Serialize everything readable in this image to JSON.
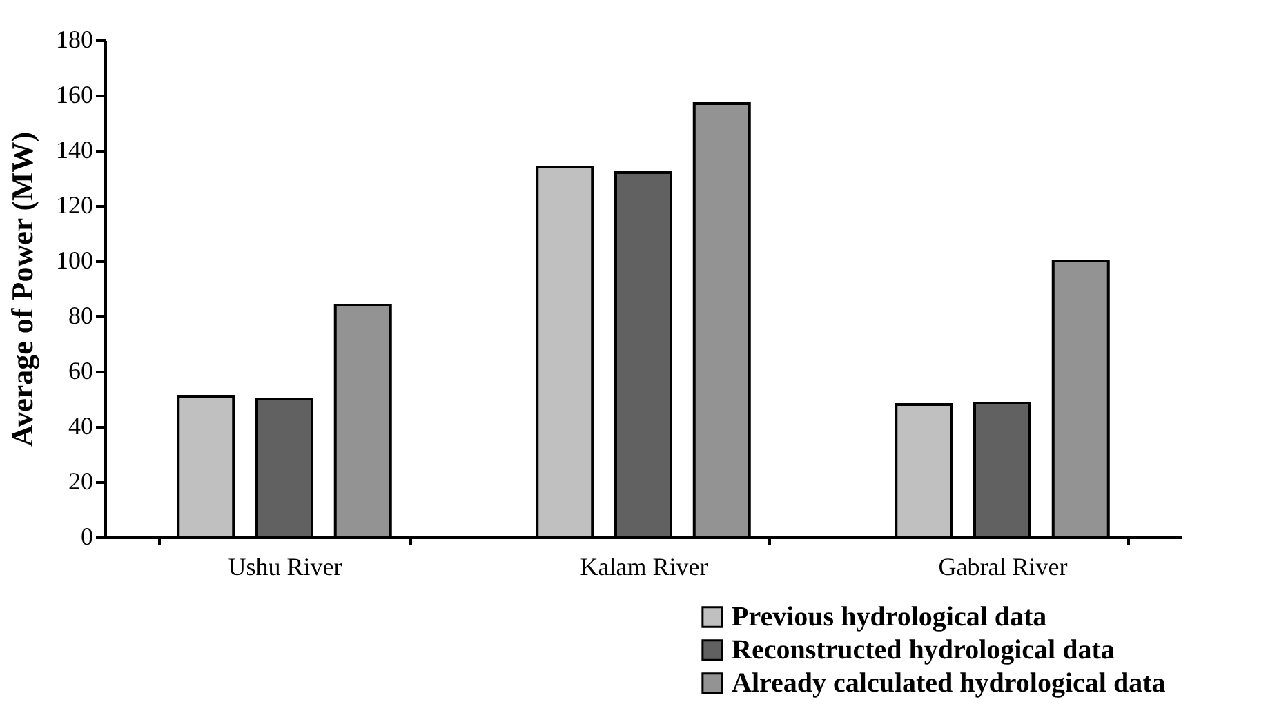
{
  "chart_data": {
    "type": "bar",
    "ylabel": "Average of  Power (MW)",
    "categories": [
      "Ushu River",
      "Kalam River",
      "Gabral River"
    ],
    "series": [
      {
        "name": "Previous hydrological data",
        "color": "#c0c0c0",
        "values": [
          51,
          134,
          48
        ]
      },
      {
        "name": "Reconstructed hydrological data",
        "color": "#616161",
        "values": [
          50,
          132,
          48.5
        ]
      },
      {
        "name": "Already calculated hydrological data",
        "color": "#939393",
        "values": [
          84,
          157,
          100
        ]
      }
    ],
    "ylim": [
      0,
      180
    ],
    "yticks": [
      0,
      20,
      40,
      60,
      80,
      100,
      120,
      140,
      160,
      180
    ],
    "grid": false,
    "legend": "bottom right"
  }
}
